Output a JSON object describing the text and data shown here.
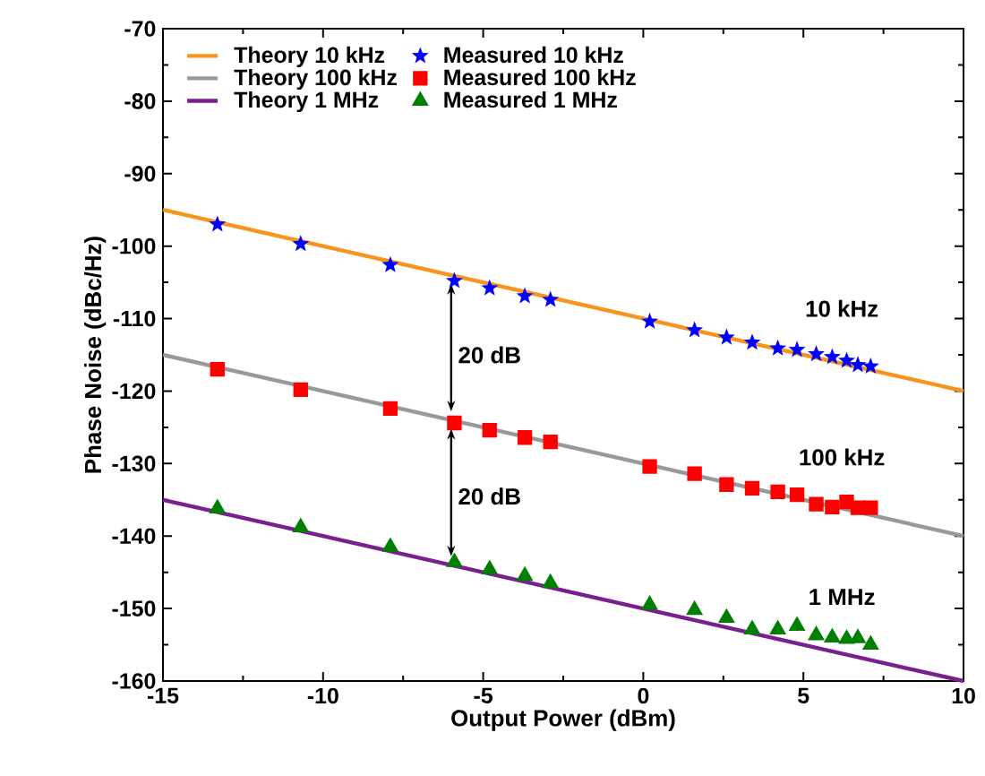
{
  "chart_data": {
    "type": "line",
    "xlabel": "Output Power (dBm)",
    "ylabel": "Phase Noise (dBc/Hz)",
    "xlim": [
      -15,
      10
    ],
    "ylim": [
      -160,
      -70
    ],
    "xticks": [
      -15,
      -10,
      -5,
      0,
      5,
      10
    ],
    "yticks": [
      -160,
      -150,
      -140,
      -130,
      -120,
      -110,
      -100,
      -90,
      -80,
      -70
    ],
    "legend": "top",
    "grid": false,
    "annotations": [
      "20 dB",
      "20 dB",
      "10 kHz",
      "100 kHz",
      "1 MHz"
    ],
    "series": [
      {
        "name": "Theory 10 kHz",
        "marker": "none",
        "color": "#f7941d",
        "x": [
          -15,
          10
        ],
        "values": [
          -95,
          -120
        ]
      },
      {
        "name": "Measured 10 kHz",
        "type": "scatter",
        "marker": "star",
        "color": "#0000ff",
        "x": [
          -13.3,
          -10.7,
          -7.9,
          -5.9,
          -4.8,
          -3.7,
          -2.9,
          0.2,
          1.6,
          2.6,
          3.4,
          4.2,
          4.8,
          5.4,
          5.9,
          6.35,
          6.7,
          7.1
        ],
        "values": [
          -97,
          -99.7,
          -102.6,
          -104.8,
          -105.8,
          -106.9,
          -107.4,
          -110.4,
          -111.6,
          -112.6,
          -113.3,
          -114.1,
          -114.3,
          -114.9,
          -115.3,
          -115.8,
          -116.4,
          -116.6
        ]
      },
      {
        "name": "Theory 100 kHz",
        "marker": "none",
        "color": "#999999",
        "x": [
          -15,
          10
        ],
        "values": [
          -115,
          -140
        ]
      },
      {
        "name": "Measured 100 kHz",
        "type": "scatter",
        "marker": "square",
        "color": "#ff0000",
        "x": [
          -13.3,
          -10.7,
          -7.9,
          -5.9,
          -4.8,
          -3.7,
          -2.9,
          0.2,
          1.6,
          2.6,
          3.4,
          4.2,
          4.8,
          5.4,
          5.9,
          6.35,
          6.7,
          7.1
        ],
        "values": [
          -117,
          -119.8,
          -122.4,
          -124.4,
          -125.4,
          -126.4,
          -127,
          -130.4,
          -131.4,
          -132.9,
          -133.4,
          -133.9,
          -134.3,
          -135.6,
          -136,
          -135.3,
          -136.1,
          -136.1
        ]
      },
      {
        "name": "Theory 1 MHz",
        "marker": "none",
        "color": "#7b1f8f",
        "x": [
          -15,
          10
        ],
        "values": [
          -135,
          -160
        ]
      },
      {
        "name": "Measured 1 MHz",
        "type": "scatter",
        "marker": "triangle",
        "color": "#008000",
        "x": [
          -13.3,
          -10.7,
          -7.9,
          -5.9,
          -4.8,
          -3.7,
          -2.9,
          0.2,
          1.6,
          2.6,
          3.4,
          4.2,
          4.8,
          5.4,
          5.9,
          6.35,
          6.7,
          7.1
        ],
        "values": [
          -136.2,
          -138.8,
          -141.5,
          -143.6,
          -144.6,
          -145.5,
          -146.5,
          -149.5,
          -150.2,
          -151.3,
          -152.9,
          -152.9,
          -152.4,
          -153.7,
          -154,
          -154.2,
          -154.1,
          -155
        ]
      }
    ]
  }
}
